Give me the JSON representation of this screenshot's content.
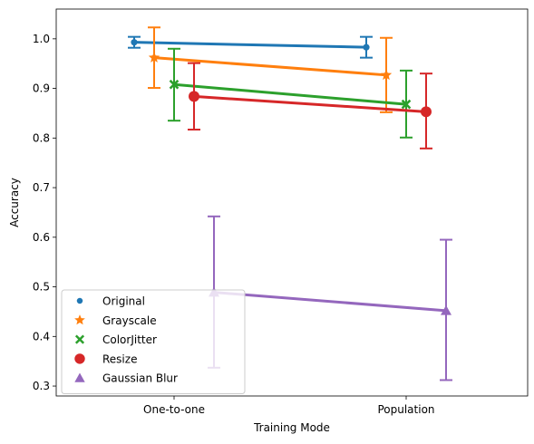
{
  "chart_data": {
    "type": "line",
    "title": "",
    "xlabel": "Training Mode",
    "ylabel": "Accuracy",
    "categories": [
      "One-to-one",
      "Population"
    ],
    "ylim": [
      0.28,
      1.06
    ],
    "yticks": [
      "0.3",
      "0.4",
      "0.5",
      "0.6",
      "0.7",
      "0.8",
      "0.9",
      "1.0"
    ],
    "grid": false,
    "legend_position": "lower-left",
    "error_bars": true,
    "series": [
      {
        "name": "Original",
        "marker": "circle-small",
        "color": "#1f77b4",
        "values": [
          0.993,
          0.983
        ],
        "err_low": [
          0.982,
          0.962
        ],
        "err_high": [
          1.004,
          1.004
        ]
      },
      {
        "name": "Grayscale",
        "marker": "star",
        "color": "#ff7f0e",
        "values": [
          0.962,
          0.927
        ],
        "err_low": [
          0.901,
          0.852
        ],
        "err_high": [
          1.023,
          1.002
        ]
      },
      {
        "name": "ColorJitter",
        "marker": "x",
        "color": "#2ca02c",
        "values": [
          0.908,
          0.868
        ],
        "err_low": [
          0.835,
          0.801
        ],
        "err_high": [
          0.98,
          0.936
        ]
      },
      {
        "name": "Resize",
        "marker": "circle",
        "color": "#d62728",
        "values": [
          0.884,
          0.853
        ],
        "err_low": [
          0.817,
          0.779
        ],
        "err_high": [
          0.951,
          0.93
        ]
      },
      {
        "name": "Gaussian Blur",
        "marker": "triangle",
        "color": "#9467bd",
        "values": [
          0.489,
          0.452
        ],
        "err_low": [
          0.337,
          0.312
        ],
        "err_high": [
          0.642,
          0.595
        ]
      }
    ]
  }
}
